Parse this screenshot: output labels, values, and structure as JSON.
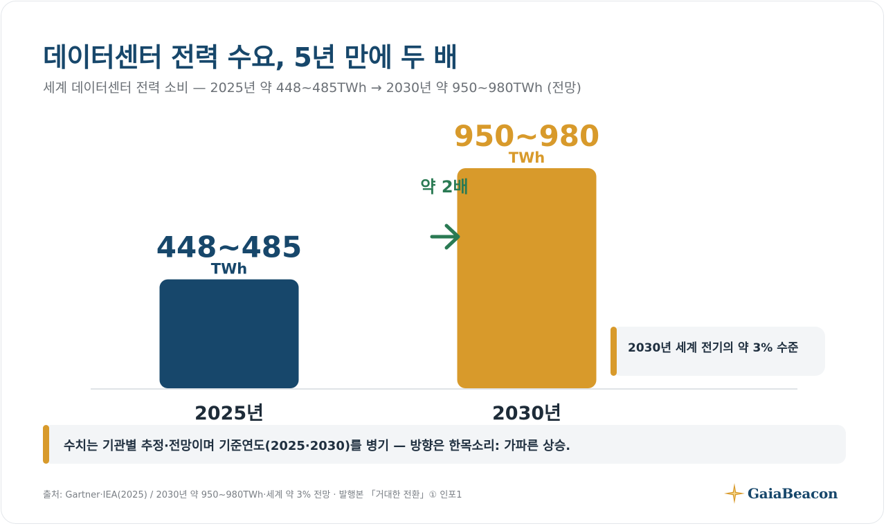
{
  "header": {
    "title": "데이터센터 전력 수요, 5년 만에 두 배",
    "subtitle": "세계 데이터센터 전력 소비 — 2025년 약 448~485TWh → 2030년 약 950~980TWh (전망)"
  },
  "chart_data": {
    "type": "bar",
    "categories": [
      "2025년",
      "2030년"
    ],
    "values": [
      466.5,
      965
    ],
    "value_ranges": [
      [
        448,
        485
      ],
      [
        950,
        980
      ]
    ],
    "value_labels": [
      "448~485",
      "950~980"
    ],
    "unit_label": "TWh",
    "colors": [
      "#17476b",
      "#d89a2b"
    ],
    "annotation": {
      "text": "약 2배",
      "color": "#2a7a53"
    },
    "title": "",
    "xlabel": "",
    "ylabel": "",
    "grid": false,
    "legend": "none"
  },
  "note": {
    "text": "2030년 세계 전기의 약 3% 수준"
  },
  "summary": {
    "text": "수치는 기관별 추정·전망이며 기준연도(2025·2030)를 병기 — 방향은 한목소리: 가파른 상승."
  },
  "footer": {
    "source": "출처: Gartner·IEA(2025) / 2030년 약 950~980TWh·세계 약 3% 전망 · 발행본 「거대한 전환」① 인포1",
    "brand": "GaiaBeacon",
    "brand_icon": "compass-star-icon"
  }
}
